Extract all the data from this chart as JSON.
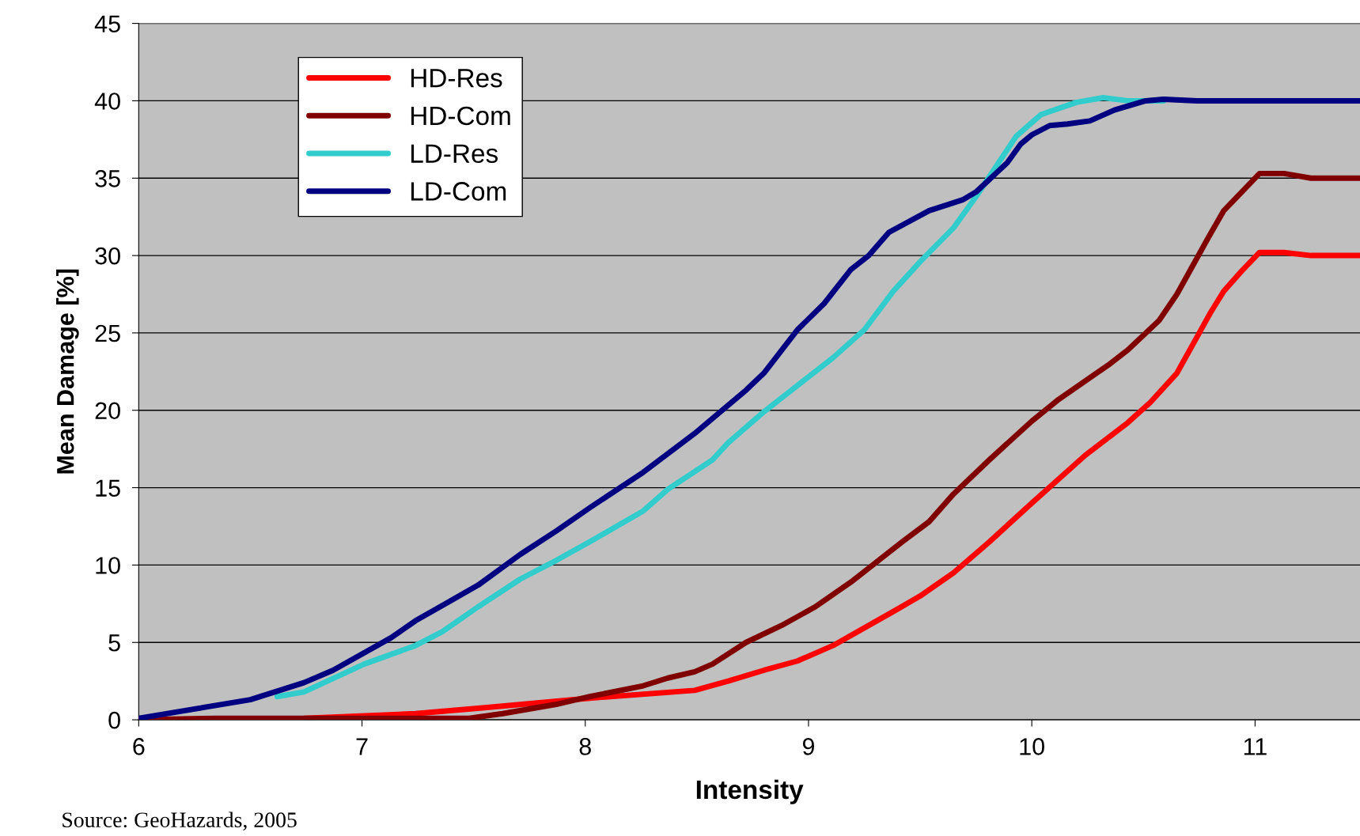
{
  "chart_data": {
    "type": "line",
    "xlabel": "Intensity",
    "ylabel": "Mean Damage [%]",
    "xlim": [
      6,
      11.47
    ],
    "xticks": [
      6,
      7,
      8,
      9,
      10,
      11
    ],
    "ylim": [
      0,
      45
    ],
    "yticks": [
      0,
      5,
      10,
      15,
      20,
      25,
      30,
      35,
      40,
      45
    ],
    "grid": "y",
    "legend": "top left",
    "marker": "none",
    "line_style": "solid",
    "annotations": [
      "Source: GeoHazards, 2005"
    ],
    "series": [
      {
        "name": "HD-Res",
        "color": "#ff0000",
        "x": [
          6,
          6.74,
          7.24,
          7.56,
          8.02,
          8.49,
          8.64,
          8.8,
          8.95,
          9.11,
          9.38,
          9.5,
          9.65,
          9.81,
          10.0,
          10.24,
          10.43,
          10.53,
          10.65,
          10.8,
          10.86,
          10.94,
          11.02,
          11.13,
          11.25,
          11.47
        ],
        "values": [
          0,
          0.1,
          0.4,
          0.8,
          1.4,
          1.9,
          2.5,
          3.2,
          3.8,
          4.8,
          7.0,
          8.0,
          9.5,
          11.5,
          14.0,
          17.1,
          19.2,
          20.5,
          22.4,
          26.3,
          27.7,
          29.0,
          30.2,
          30.2,
          30,
          30
        ]
      },
      {
        "name": "HD-Com",
        "color": "#800000",
        "x": [
          6,
          6.35,
          6.93,
          7.48,
          7.63,
          7.87,
          8.02,
          8.26,
          8.37,
          8.49,
          8.57,
          8.72,
          8.88,
          9.03,
          9.19,
          9.42,
          9.54,
          9.65,
          9.81,
          10.0,
          10.12,
          10.26,
          10.35,
          10.43,
          10.57,
          10.65,
          10.8,
          10.86,
          10.94,
          11.02,
          11.13,
          11.25,
          11.47
        ],
        "values": [
          0,
          0.1,
          0.1,
          0.1,
          0.4,
          1.0,
          1.5,
          2.2,
          2.7,
          3.1,
          3.6,
          5.0,
          6.1,
          7.3,
          8.9,
          11.5,
          12.8,
          14.6,
          16.8,
          19.3,
          20.7,
          22.1,
          23.0,
          23.9,
          25.8,
          27.5,
          31.4,
          32.9,
          34.1,
          35.3,
          35.3,
          35,
          35
        ]
      },
      {
        "name": "LD-Res",
        "color": "#33cccc",
        "x": [
          6.62,
          6.74,
          7.01,
          7.24,
          7.36,
          7.52,
          7.71,
          7.87,
          8.02,
          8.26,
          8.37,
          8.57,
          8.64,
          8.8,
          8.95,
          9.11,
          9.25,
          9.38,
          9.5,
          9.65,
          9.75,
          9.93,
          10.04,
          10.2,
          10.32,
          10.43,
          10.59
        ],
        "values": [
          1.5,
          1.8,
          3.6,
          4.8,
          5.7,
          7.3,
          9.1,
          10.3,
          11.5,
          13.5,
          14.9,
          16.8,
          17.9,
          19.9,
          21.6,
          23.4,
          25.2,
          27.7,
          29.6,
          31.8,
          33.8,
          37.7,
          39.1,
          39.9,
          40.2,
          40.0,
          40
        ]
      },
      {
        "name": "LD-Com",
        "color": "#000080",
        "x": [
          6,
          6.5,
          6.74,
          6.87,
          7.13,
          7.24,
          7.52,
          7.71,
          7.87,
          8.02,
          8.26,
          8.49,
          8.72,
          8.8,
          8.95,
          9.07,
          9.19,
          9.27,
          9.36,
          9.54,
          9.69,
          9.75,
          9.89,
          9.95,
          10.0,
          10.08,
          10.16,
          10.26,
          10.37,
          10.51,
          10.59,
          10.74,
          11.47
        ],
        "values": [
          0.1,
          1.3,
          2.4,
          3.2,
          5.3,
          6.4,
          8.7,
          10.7,
          12.2,
          13.7,
          16.0,
          18.5,
          21.3,
          22.4,
          25.2,
          26.9,
          29.1,
          30.0,
          31.5,
          32.9,
          33.6,
          34.1,
          36.0,
          37.2,
          37.8,
          38.4,
          38.5,
          38.7,
          39.4,
          40.0,
          40.1,
          40,
          40
        ]
      }
    ]
  }
}
